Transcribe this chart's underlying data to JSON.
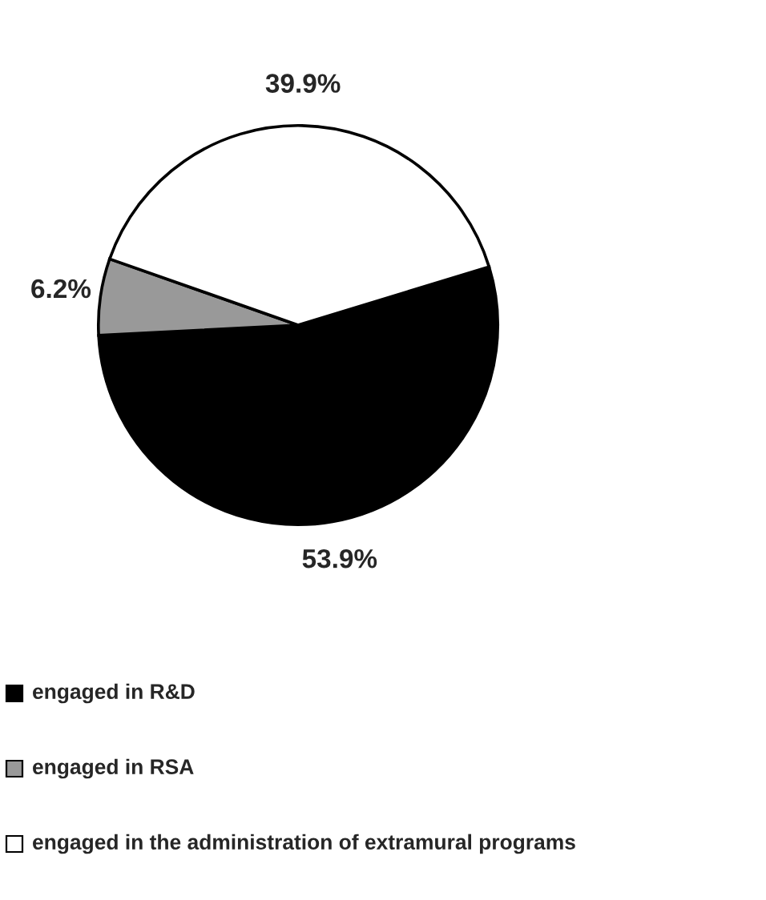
{
  "chart_data": {
    "type": "pie",
    "categories": [
      "engaged in R&D",
      "engaged in RSA",
      "engaged in the administration of extramural programs"
    ],
    "values": [
      53.9,
      6.2,
      39.9
    ],
    "colors": [
      "#000000",
      "#999999",
      "#ffffff"
    ],
    "value_labels": [
      "53.9%",
      "6.2%",
      "39.9%"
    ],
    "legend": "bottom"
  }
}
